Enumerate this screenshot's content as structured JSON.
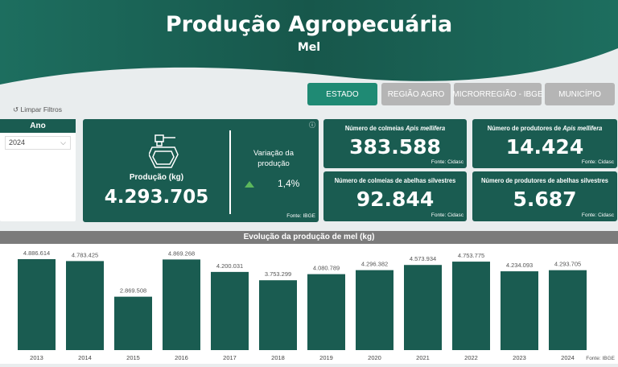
{
  "header": {
    "title": "Produção Agropecuária",
    "subtitle": "Mel"
  },
  "tabs": [
    {
      "label": "ESTADO",
      "active": true
    },
    {
      "label": "REGIÃO AGRO",
      "active": false
    },
    {
      "label": "MICRORREGIÃO - IBGE",
      "active": false
    },
    {
      "label": "MUNICÍPIO",
      "active": false
    }
  ],
  "clear_filters": "↺ Limpar Filtros",
  "filter": {
    "label": "Ano",
    "value": "2024"
  },
  "production": {
    "label": "Produção (kg)",
    "value": "4.293.705",
    "variation_label": "Variação da produção",
    "variation": "1,4%",
    "trend": "up",
    "source": "Fonte: IBGE"
  },
  "cards": [
    {
      "title": "Número de colmeias ",
      "italic": "Apis mellifera",
      "value": "383.588",
      "source": "Fonte: Cidasc"
    },
    {
      "title": "Número de produtores de ",
      "italic": "Apis mellifera",
      "value": "14.424",
      "source": "Fonte: Cidasc"
    },
    {
      "title": "Número de colmeias de abelhas silvestres",
      "italic": "",
      "value": "92.844",
      "source": "Fonte: Cidasc"
    },
    {
      "title": "Número de produtores de abelhas silvestres",
      "italic": "",
      "value": "5.687",
      "source": "Fonte: Cidasc"
    }
  ],
  "colors": {
    "primary": "#1a5c51",
    "active_tab": "#1f8a74",
    "inactive_tab": "#b5b5b5",
    "trend_up": "#5cb85c"
  },
  "chart_data": {
    "type": "bar",
    "title": "Evolução da produção de mel (kg)",
    "categories": [
      "2013",
      "2014",
      "2015",
      "2016",
      "2017",
      "2018",
      "2019",
      "2020",
      "2021",
      "2022",
      "2023",
      "2024"
    ],
    "values": [
      4886614,
      4783425,
      2869508,
      4869268,
      4200031,
      3753299,
      4080789,
      4296382,
      4573934,
      4753775,
      4234093,
      4293705
    ],
    "labels": [
      "4.886.614",
      "4.783.425",
      "2.869.508",
      "4.869.268",
      "4.200.031",
      "3.753.299",
      "4.080.789",
      "4.296.382",
      "4.573.934",
      "4.753.775",
      "4.234.093",
      "4.293.705"
    ],
    "source": "Fonte: IBGE"
  }
}
